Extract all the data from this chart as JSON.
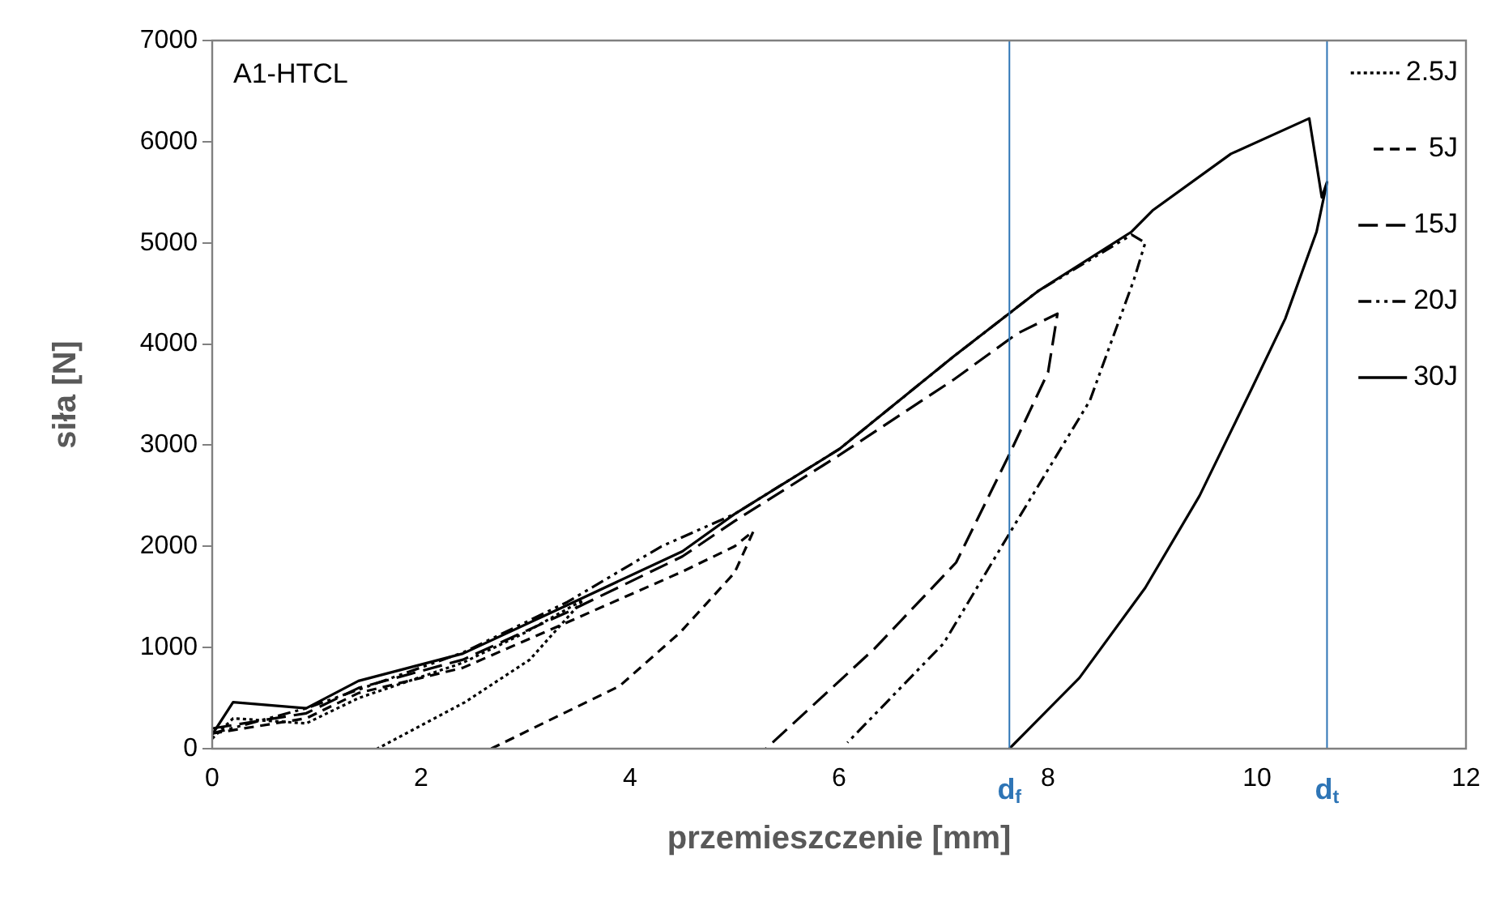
{
  "chart_data": {
    "type": "line",
    "xlabel": "przemieszczenie [mm]",
    "ylabel": "siła [N]",
    "annotations": [
      "A1-HTCL"
    ],
    "xlim": [
      0,
      12
    ],
    "xticks": [
      0,
      2,
      4,
      6,
      8,
      10,
      12
    ],
    "ylim": [
      0,
      7000
    ],
    "yticks": [
      0,
      1000,
      2000,
      3000,
      4000,
      5000,
      6000,
      7000
    ],
    "grid": false,
    "legend": "top right",
    "marker": "none",
    "ref_lines": [
      {
        "axis": "x",
        "value": 7.63,
        "label": "d$_{f}$",
        "color": "#2e75b6"
      },
      {
        "axis": "x",
        "value": 10.67,
        "label": "d$_{t}$",
        "color": "#2e75b6"
      }
    ],
    "series": [
      {
        "name": "2.5J",
        "color": "#000000",
        "line_style": "dotted",
        "x": [
          0,
          0.2,
          0.9,
          1.4,
          2.4,
          3.0,
          3.55,
          3.04,
          2.42,
          1.58
        ],
        "values": [
          100,
          300,
          250,
          500,
          850,
          1150,
          1470,
          880,
          460,
          0
        ]
      },
      {
        "name": "5J",
        "color": "#000000",
        "line_style": "dashed",
        "x": [
          0,
          0.9,
          1.4,
          2.4,
          3.4,
          4.5,
          5.0,
          5.18,
          5.0,
          4.48,
          3.9,
          2.67
        ],
        "values": [
          150,
          300,
          550,
          800,
          1250,
          1750,
          2000,
          2150,
          1740,
          1150,
          620,
          0
        ]
      },
      {
        "name": "15J",
        "color": "#000000",
        "line_style": "long dashed",
        "x": [
          0,
          0.9,
          1.4,
          2.4,
          3.4,
          4.5,
          5.0,
          6.0,
          7.1,
          7.7,
          8.09,
          8.0,
          7.63,
          7.12,
          6.34,
          5.3
        ],
        "values": [
          200,
          350,
          600,
          880,
          1350,
          1900,
          2250,
          2900,
          3650,
          4100,
          4300,
          3720,
          2910,
          1840,
          990,
          0
        ]
      },
      {
        "name": "20J",
        "color": "#000000",
        "line_style": "dash dot dot",
        "x": [
          0,
          0.9,
          2.4,
          3.4,
          4.3,
          5.0,
          6.0,
          7.1,
          7.9,
          8.8,
          8.93,
          8.82,
          8.4,
          7.69,
          7.0,
          6.08
        ],
        "values": [
          150,
          400,
          950,
          1450,
          2000,
          2320,
          2960,
          3880,
          4520,
          5080,
          5000,
          4630,
          3440,
          2230,
          1040,
          60
        ]
      },
      {
        "name": "30J",
        "color": "#000000",
        "line_style": "solid",
        "x": [
          0,
          0.2,
          0.9,
          1.4,
          2.4,
          3.4,
          4.5,
          5.0,
          6.0,
          7.1,
          7.9,
          8.8,
          9.0,
          9.75,
          10.5,
          10.62,
          10.67,
          10.57,
          10.27,
          9.95,
          9.45,
          8.93,
          8.3,
          7.63
        ],
        "values": [
          140,
          460,
          400,
          670,
          940,
          1420,
          1950,
          2320,
          2960,
          3880,
          4520,
          5110,
          5320,
          5880,
          6230,
          5450,
          5600,
          5110,
          4250,
          3560,
          2500,
          1590,
          700,
          0
        ]
      }
    ]
  }
}
